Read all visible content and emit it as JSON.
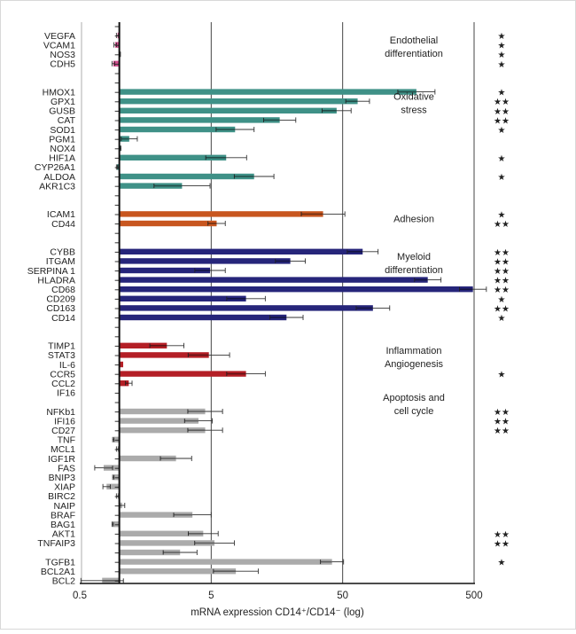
{
  "chart_data": {
    "type": "bar",
    "orientation": "horizontal",
    "xlabel": "mRNA expression CD14⁺/CD14⁻ (log)",
    "xscale": "log",
    "xlim": [
      0.5,
      500
    ],
    "xticks": [
      "0.5",
      "5",
      "50",
      "500"
    ],
    "baseline": 1,
    "grid": "vertical at ticks",
    "groups": [
      {
        "name": "Endothelial differentiation",
        "label_lines": [
          "Endothelial",
          "differentiation"
        ],
        "color": "#d24d8e",
        "genes": [
          {
            "gene": "VEGFA",
            "value": 0.97,
            "err": 0.95,
            "sig": "*"
          },
          {
            "gene": "VCAM1",
            "value": 0.93,
            "err": 0.91,
            "sig": "*"
          },
          {
            "gene": "NOS3",
            "value": 1.01,
            "err": 1.02,
            "sig": "*"
          },
          {
            "gene": "CDH5",
            "value": 0.9,
            "err": 0.88,
            "sig": "*"
          }
        ]
      },
      {
        "name": "Oxidative stress",
        "label_lines": [
          "Oxidative",
          "stress"
        ],
        "color": "#3f9187",
        "genes": [
          {
            "gene": "HMOX1",
            "value": 182,
            "err": 252,
            "sig": "*"
          },
          {
            "gene": "GPX1",
            "value": 65,
            "err": 80,
            "sig": "**"
          },
          {
            "gene": "GUSB",
            "value": 45,
            "err": 58,
            "sig": "**"
          },
          {
            "gene": "CAT",
            "value": 16.6,
            "err": 22,
            "sig": "**"
          },
          {
            "gene": "SOD1",
            "value": 7.6,
            "err": 10.6,
            "sig": "*"
          },
          {
            "gene": "PGM1",
            "value": 1.19,
            "err": 1.37,
            "sig": ""
          },
          {
            "gene": "NOX4",
            "value": 1.02,
            "err": 1.03,
            "sig": ""
          },
          {
            "gene": "HIF1A",
            "value": 6.5,
            "err": 9.3,
            "sig": "*"
          },
          {
            "gene": "CYP26A1",
            "value": 0.96,
            "err": 0.95,
            "sig": ""
          },
          {
            "gene": "ALDOA",
            "value": 10.6,
            "err": 15,
            "sig": "*"
          },
          {
            "gene": "AKR1C3",
            "value": 3.0,
            "err": 4.9,
            "sig": ""
          }
        ]
      },
      {
        "name": "Adhesion",
        "label_lines": [
          "Adhesion"
        ],
        "color": "#c8561f",
        "genes": [
          {
            "gene": "ICAM1",
            "value": 35.5,
            "err": 52,
            "sig": "*"
          },
          {
            "gene": "CD44",
            "value": 5.5,
            "err": 6.4,
            "sig": "**"
          }
        ]
      },
      {
        "name": "Myeloid differentiation",
        "label_lines": [
          "Myeloid",
          "differentiation"
        ],
        "color": "#26257a",
        "genes": [
          {
            "gene": "CYBB",
            "value": 71,
            "err": 93,
            "sig": "**"
          },
          {
            "gene": "ITGAM",
            "value": 20,
            "err": 26,
            "sig": "**"
          },
          {
            "gene": "SERPINA 1",
            "value": 4.9,
            "err": 6.4,
            "sig": "**"
          },
          {
            "gene": "HLADRA",
            "value": 222,
            "err": 280,
            "sig": "**"
          },
          {
            "gene": "CD68",
            "value": 490,
            "err": 620,
            "sig": "**"
          },
          {
            "gene": "CD209",
            "value": 9.2,
            "err": 12.9,
            "sig": "*"
          },
          {
            "gene": "CD163",
            "value": 85,
            "err": 114,
            "sig": "**"
          },
          {
            "gene": "CD14",
            "value": 18.7,
            "err": 25,
            "sig": "*"
          }
        ]
      },
      {
        "name": "Inflammation Angiogenesis",
        "label_lines": [
          "Inflammation",
          "Angiogenesis"
        ],
        "color": "#b41f26",
        "genes": [
          {
            "gene": "TIMP1",
            "value": 2.3,
            "err": 3.1,
            "sig": ""
          },
          {
            "gene": "STAT3",
            "value": 4.8,
            "err": 6.9,
            "sig": ""
          },
          {
            "gene": "IL-6",
            "value": 1.07,
            "err": 1.07,
            "sig": ""
          },
          {
            "gene": "CCR5",
            "value": 9.2,
            "err": 12.9,
            "sig": "*"
          },
          {
            "gene": "CCL2",
            "value": 1.18,
            "err": 1.25,
            "sig": ""
          }
        ]
      },
      {
        "name": "Apoptosis and cell cycle",
        "label_lines": [
          "Apoptosis and",
          "cell cycle"
        ],
        "color": "#ababab",
        "contiguous": true,
        "genes": [
          {
            "gene": "IF16",
            "value": 1,
            "err": 1,
            "sig": ""
          },
          {
            "gene": "",
            "value": 1,
            "err": 1,
            "sig": ""
          },
          {
            "gene": "NFKb1",
            "value": 4.5,
            "err": 6.1,
            "sig": "**"
          },
          {
            "gene": "IFI16",
            "value": 4.0,
            "err": 5.1,
            "sig": "**"
          },
          {
            "gene": "CD27",
            "value": 4.5,
            "err": 6.1,
            "sig": "**"
          },
          {
            "gene": "TNF",
            "value": 0.9,
            "err": 0.89,
            "sig": ""
          },
          {
            "gene": "MCL1",
            "value": 0.97,
            "err": 0.95,
            "sig": ""
          },
          {
            "gene": "IGF1R",
            "value": 2.7,
            "err": 3.55,
            "sig": ""
          },
          {
            "gene": "FAS",
            "value": 0.76,
            "err": 0.65,
            "sig": ""
          },
          {
            "gene": "BNIP3",
            "value": 0.9,
            "err": 0.89,
            "sig": ""
          },
          {
            "gene": "XIAP",
            "value": 0.8,
            "err": 0.75,
            "sig": ""
          },
          {
            "gene": "BIRC2",
            "value": 0.97,
            "err": 0.95,
            "sig": ""
          },
          {
            "gene": "NAIP",
            "value": 1.05,
            "err": 1.1,
            "sig": ""
          },
          {
            "gene": "BRAF",
            "value": 3.6,
            "err": 5.0,
            "sig": ""
          },
          {
            "gene": "BAG1",
            "value": 0.89,
            "err": 0.88,
            "sig": ""
          },
          {
            "gene": "AKT1",
            "value": 4.35,
            "err": 5.65,
            "sig": "**"
          },
          {
            "gene": "TNFAIP3",
            "value": 5.3,
            "err": 7.5,
            "sig": "**"
          },
          {
            "gene": "",
            "value": 2.9,
            "err": 3.9,
            "sig": ""
          },
          {
            "gene": "TGFB1",
            "value": 41.5,
            "err": 50.8,
            "sig": "*"
          },
          {
            "gene": "BCL2A1",
            "value": 7.7,
            "err": 11.4,
            "sig": ""
          },
          {
            "gene": "BCL2",
            "value": 0.74,
            "err": 0.51,
            "sig": ""
          }
        ]
      }
    ]
  }
}
